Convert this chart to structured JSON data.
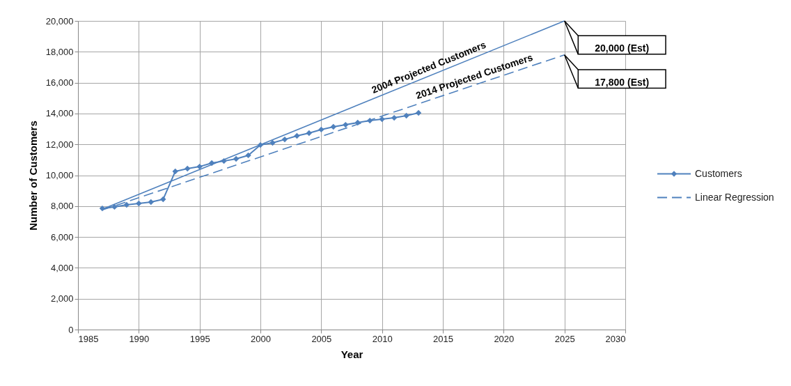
{
  "chart_data": {
    "type": "line",
    "xlabel": "Year",
    "ylabel": "Number of Customers",
    "xlim": [
      1985,
      2030
    ],
    "xticks": [
      1985,
      1990,
      1995,
      2000,
      2005,
      2010,
      2015,
      2020,
      2025,
      2030
    ],
    "ylim": [
      0,
      20000
    ],
    "yticks": [
      {
        "value": 0,
        "label": "0"
      },
      {
        "value": 2000,
        "label": "2,000"
      },
      {
        "value": 4000,
        "label": "4,000"
      },
      {
        "value": 6000,
        "label": "6,000"
      },
      {
        "value": 8000,
        "label": "8,000"
      },
      {
        "value": 10000,
        "label": "10,000"
      },
      {
        "value": 12000,
        "label": "12,000"
      },
      {
        "value": 14000,
        "label": "14,000"
      },
      {
        "value": 16000,
        "label": "16,000"
      },
      {
        "value": 18000,
        "label": "18,000"
      },
      {
        "value": 20000,
        "label": "20,000"
      }
    ],
    "grid": true,
    "legend": "right",
    "series": [
      {
        "name": "Customers",
        "color": "#4f81bd",
        "marker": "diamond",
        "line_style": "solid",
        "x": [
          1987,
          1988,
          1989,
          1990,
          1991,
          1992,
          1993,
          1994,
          1995,
          1996,
          1997,
          1998,
          1999,
          2000,
          2001,
          2002,
          2003,
          2004,
          2005,
          2006,
          2007,
          2008,
          2009,
          2010,
          2011,
          2012,
          2013
        ],
        "values": [
          7850,
          7950,
          8080,
          8170,
          8260,
          8440,
          10250,
          10430,
          10560,
          10790,
          10920,
          11060,
          11290,
          11960,
          12100,
          12320,
          12550,
          12730,
          12960,
          13140,
          13270,
          13410,
          13540,
          13630,
          13720,
          13860,
          14040
        ]
      },
      {
        "name": "Linear Regression",
        "color": "#4f81bd",
        "marker": "none",
        "line_style": "dashed",
        "x": [
          1987,
          2025
        ],
        "values": [
          7750,
          17800
        ]
      },
      {
        "color": "#4f81bd",
        "marker": "none",
        "line_style": "solid",
        "x": [
          1987,
          2025
        ],
        "values": [
          7800,
          20000
        ]
      }
    ],
    "annotations": [
      {
        "text": "2004 Projected Customers",
        "x": 2014.1,
        "y": 16500
      },
      {
        "text": "2014 Projected Customers",
        "x": 2017.8,
        "y": 15900
      },
      "20,000 (Est)",
      "17,800 (Est)"
    ]
  }
}
